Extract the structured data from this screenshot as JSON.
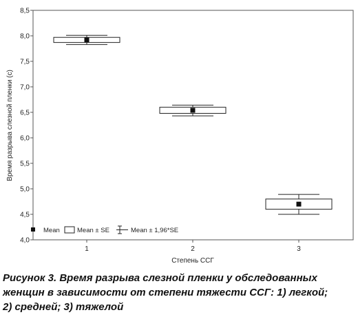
{
  "chart_data": {
    "type": "box",
    "ylabel": "Время разрыва слезной пленки (с)",
    "xlabel": "Степень ССГ",
    "categories": [
      "1",
      "2",
      "3"
    ],
    "ylim": [
      4.0,
      8.5
    ],
    "yticks": [
      4.0,
      4.5,
      5.0,
      5.5,
      6.0,
      6.5,
      7.0,
      7.5,
      8.0,
      8.5
    ],
    "ytick_labels": [
      "4,0",
      "4,5",
      "5,0",
      "5,5",
      "6,0",
      "6,5",
      "7,0",
      "7,5",
      "8,0",
      "8,5"
    ],
    "grid": false,
    "legend_position": "bottom-left",
    "legend": [
      {
        "kind": "point",
        "label": "Mean"
      },
      {
        "kind": "box",
        "label": "Mean ± SE"
      },
      {
        "kind": "whisker",
        "label": "Mean ± 1,96*SE"
      }
    ],
    "series": [
      {
        "category": "1",
        "mean": 7.92,
        "se_low": 7.87,
        "se_high": 7.97,
        "ci_low": 7.83,
        "ci_high": 8.01
      },
      {
        "category": "2",
        "mean": 6.54,
        "se_low": 6.48,
        "se_high": 6.6,
        "ci_low": 6.43,
        "ci_high": 6.64
      },
      {
        "category": "3",
        "mean": 4.7,
        "se_low": 4.6,
        "se_high": 4.8,
        "ci_low": 4.5,
        "ci_high": 4.89
      }
    ],
    "colors": {
      "line": "#222222",
      "box_fill": "#ffffff",
      "mean": "#111111",
      "frame": "#555555"
    }
  },
  "caption": {
    "line1": "Рисунок 3. Время разрыва слезной пленки у обследованных",
    "line2": "женщин в зависимости от степени тяжести ССГ: 1) легкой;",
    "line3": "2) средней; 3) тяжелой"
  }
}
